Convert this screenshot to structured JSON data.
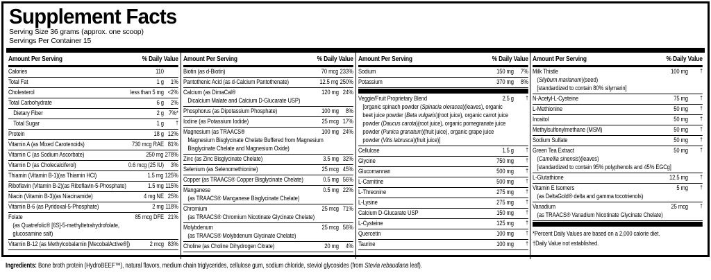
{
  "colors": {
    "ink": "#000000",
    "background": "#ffffff"
  },
  "header": {
    "title": "Supplement Facts",
    "serving_size": "Serving Size 36 grams (approx. one scoop)",
    "servings_per_container": "Servings Per Container 15"
  },
  "column_header": {
    "amount": "Amount Per Serving",
    "dv": "% Daily Value"
  },
  "columns": [
    {
      "rows": [
        {
          "name": "Calories",
          "amount": "110",
          "dv": ""
        },
        {
          "name": "Total Fat",
          "amount": "1 g",
          "dv": "1%"
        },
        {
          "name": "Cholesterol",
          "amount": "less than 5 mg",
          "dv": "<2%"
        },
        {
          "name": "Total Carbohydrate",
          "amount": "6 g",
          "dv": "2%"
        },
        {
          "name": "Dietary Fiber",
          "amount": "2 g",
          "dv": "7%*",
          "indent": true
        },
        {
          "name": "Total Sugar",
          "amount": "1 g",
          "dv": "†",
          "indent": true
        },
        {
          "name": "Protein",
          "amount": "18 g",
          "dv": "12%"
        },
        {
          "name": "Vitamin A (as Mixed Carotenoids)",
          "amount": "730 mcg RAE",
          "dv": "81%"
        },
        {
          "name": "Vitamin C (as Sodium Ascorbate)",
          "amount": "250 mg",
          "dv": "278%"
        },
        {
          "name": "Vitamin D (as Cholecalciferol)",
          "amount": "0.6 mcg (25 IU)",
          "dv": "3%"
        },
        {
          "name": "Thiamin (Vitamin B-1)(as Thiamin HCl)",
          "amount": "1.5 mg",
          "dv": "125%"
        },
        {
          "name": "Riboflavin (Vitamin B-2)(as Riboflavin-5-Phosphate)",
          "amount": "1.5 mg",
          "dv": "115%"
        },
        {
          "name": "Niacin (Vitamin B-3)(as Niacinamide)",
          "amount": "4 mg NE",
          "dv": "25%"
        },
        {
          "name": "Vitamin B-6 (as Pyridoxal-5-Phosphate)",
          "amount": "2 mg",
          "dv": "118%"
        },
        {
          "name": "Folate",
          "amount": "85 mcg DFE",
          "dv": "21%",
          "sub": [
            "(as Quatrefolic® [6S]-5-methyltetrahydrofolate,",
            "glucosamine salt)"
          ]
        },
        {
          "name": "Vitamin B-12 (as Methylcobalamin [MecobalActive®])",
          "amount": "2 mcg",
          "dv": "83%"
        }
      ]
    },
    {
      "rows": [
        {
          "name": "Biotin (as d-Biotin)",
          "amount": "70 mcg",
          "dv": "233%"
        },
        {
          "name": "Pantothenic Acid (as d-Calcium Pantothenate)",
          "amount": "12.5 mg",
          "dv": "250%"
        },
        {
          "name": "Calcium (as DimaCal®",
          "amount": "120 mg",
          "dv": "24%",
          "sub": [
            "Dicalcium Malate and Calcium D-Glucarate USP)"
          ]
        },
        {
          "name": "Phosphorus (as Dipotassium Phosphate)",
          "amount": "100 mg",
          "dv": "8%"
        },
        {
          "name": "Iodine (as Potassium Iodide)",
          "amount": "25 mcg",
          "dv": "17%"
        },
        {
          "name": "Magnesium (as TRAACS®",
          "amount": "100 mg",
          "dv": "24%",
          "sub": [
            "Magnesium Bisglycinate Chelate Buffered from Magnesium",
            "Bisglycinate Chelate and Magnesium Oxide)"
          ]
        },
        {
          "name": "Zinc (as Zinc Bisglycinate Chelate)",
          "amount": "3.5 mg",
          "dv": "32%"
        },
        {
          "name": "Selenium (as Selenomethionine)",
          "amount": "25 mcg",
          "dv": "45%"
        },
        {
          "name": "Copper (as TRAACS® Copper Bisglycinate Chelate)",
          "amount": "0.5 mg",
          "dv": "56%"
        },
        {
          "name": "Manganese",
          "amount": "0.5 mg",
          "dv": "22%",
          "sub": [
            "(as TRAACS® Manganese Bisglycinate Chelate)"
          ]
        },
        {
          "name": "Chromium",
          "amount": "25 mcg",
          "dv": "71%",
          "sub": [
            "(as TRAACS® Chromium Nicotinate Glycinate Chelate)"
          ]
        },
        {
          "name": "Molybdenum",
          "amount": "25 mcg",
          "dv": "56%",
          "sub": [
            "(as TRAACS® Molybdenum Glycinate Chelate)"
          ]
        },
        {
          "name": "Choline (as Choline Dihydrogen Citrate)",
          "amount": "20 mg",
          "dv": "4%"
        }
      ]
    },
    {
      "rows": [
        {
          "name": "Sodium",
          "amount": "150 mg",
          "dv": "7%"
        },
        {
          "name": "Potassium",
          "amount": "370 mg",
          "dv": "8%"
        },
        {
          "divider": true
        },
        {
          "name": "Veggie/Fruit Proprietary Blend",
          "amount": "2.5 g",
          "dv": "†",
          "sub": [
            [
              {
                "t": "[organic spinach powder ("
              },
              {
                "t": "Spinacia oleracea",
                "i": true
              },
              {
                "t": ")(leaves), organic"
              }
            ],
            [
              {
                "t": "beet juice powder ("
              },
              {
                "t": "Beta vulgaris",
                "i": true
              },
              {
                "t": ")(root juice), organic carrot juice"
              }
            ],
            [
              {
                "t": "powder ("
              },
              {
                "t": "Daucus carota",
                "i": true
              },
              {
                "t": ")(root juice), organic pomegranate juice"
              }
            ],
            [
              {
                "t": "powder ("
              },
              {
                "t": "Punica granatum",
                "i": true
              },
              {
                "t": ")(fruit juice), organic grape juice"
              }
            ],
            [
              {
                "t": "powder ("
              },
              {
                "t": "Vitis labrusca",
                "i": true
              },
              {
                "t": ")(fruit juice)]"
              }
            ]
          ]
        },
        {
          "name": "Cellulose",
          "amount": "1.5 g",
          "dv": "†"
        },
        {
          "name": "Glycine",
          "amount": "750 mg",
          "dv": "†"
        },
        {
          "name": "Glucomannan",
          "amount": "500 mg",
          "dv": "†"
        },
        {
          "name": "L-Carnitine",
          "amount": "500 mg",
          "dv": "†"
        },
        {
          "name": "L-Threonine",
          "amount": "275 mg",
          "dv": "†"
        },
        {
          "name": "L-Lysine",
          "amount": "275 mg",
          "dv": "†"
        },
        {
          "name": "Calcium D-Glucarate USP",
          "amount": "150 mg",
          "dv": "†"
        },
        {
          "name": "L-Cysteine",
          "amount": "125 mg",
          "dv": "†"
        },
        {
          "name": "Quercetin",
          "amount": "100 mg",
          "dv": "†"
        },
        {
          "name": "Taurine",
          "amount": "100 mg",
          "dv": "†"
        }
      ]
    },
    {
      "rows": [
        {
          "name": "Milk Thistle",
          "amount": "100 mg",
          "dv": "†",
          "sub": [
            [
              {
                "t": "("
              },
              {
                "t": "Silybum marianum",
                "i": true
              },
              {
                "t": ")(seed)"
              }
            ],
            "[standardized to contain 80% silymarin]"
          ]
        },
        {
          "name": "N-Acetyl-L-Cysteine",
          "amount": "75 mg",
          "dv": "†"
        },
        {
          "name": "L-Methionine",
          "amount": "50 mg",
          "dv": "†"
        },
        {
          "name": "Inositol",
          "amount": "50 mg",
          "dv": "†"
        },
        {
          "name": "Methylsulfonylmethane (MSM)",
          "amount": "50 mg",
          "dv": "†"
        },
        {
          "name": "Sodium Sulfate",
          "amount": "50 mg",
          "dv": "†"
        },
        {
          "name": "Green Tea Extract",
          "amount": "50 mg",
          "dv": "†",
          "sub": [
            [
              {
                "t": "("
              },
              {
                "t": "Camellia sinensis",
                "i": true
              },
              {
                "t": ")(leaves)"
              }
            ],
            "[standardized to contain 95% polyphenols and 45% EGCg]"
          ]
        },
        {
          "name": "L-Glutathione",
          "amount": "12.5 mg",
          "dv": "†"
        },
        {
          "name": "Vitamin E Isomers",
          "amount": "5 mg",
          "dv": "†",
          "sub": [
            "(as DeltaGold® delta and gamma tocotrienols)"
          ]
        },
        {
          "name": "Vanadium",
          "amount": "25 mcg",
          "dv": "†",
          "sub": [
            "(as TRAACS® Vanadium Nicotinate Glycinate Chelate)"
          ]
        },
        {
          "divider": true
        }
      ]
    },
    {
      "rows": []
    }
  ],
  "footnotes": [
    "*Percent Daily Values are based on a 2,000 calorie diet.",
    "†Daily Value not established."
  ],
  "ingredients_line": [
    {
      "t": "Ingredients: ",
      "b": true
    },
    {
      "t": "Bone broth protein (HydroBEEF™), natural flavors, medium chain triglycerides, cellulose gum, sodium chloride, steviol glycosides (from "
    },
    {
      "t": "Stevia rebaudiana",
      "i": true
    },
    {
      "t": " leaf)."
    }
  ]
}
